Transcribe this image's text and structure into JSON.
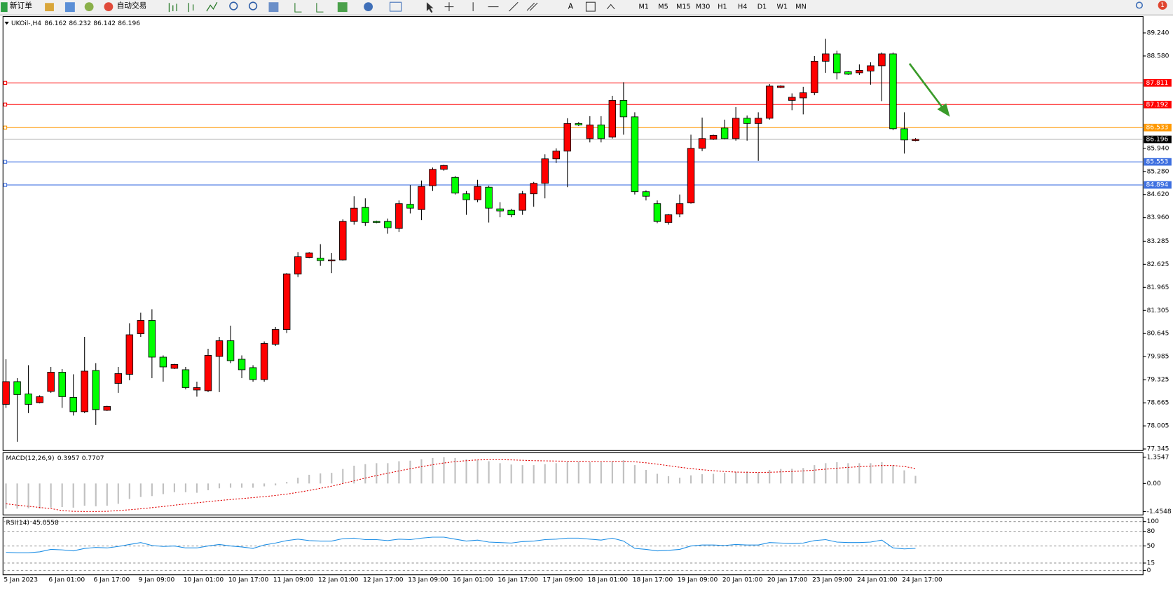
{
  "toolbar": {
    "new_order": "新订单",
    "auto_trade": "自动交易",
    "text_tool": "A",
    "notifications": "1",
    "timeframes": [
      "M1",
      "M5",
      "M15",
      "M30",
      "H1",
      "H4",
      "D1",
      "W1",
      "MN"
    ]
  },
  "chart_data": [
    {
      "type": "candlestick",
      "title": "UKOil-,H4",
      "up_color": "#ff0000",
      "down_color": "#00ff00",
      "categories": [
        "5 Jan 2023",
        null,
        null,
        null,
        "6 Jan 01:00",
        null,
        null,
        null,
        "6 Jan 17:00",
        null,
        null,
        null,
        "9 Jan 09:00",
        null,
        null,
        null,
        "10 Jan 01:00",
        null,
        null,
        null,
        "10 Jan 17:00",
        null,
        null,
        null,
        "11 Jan 09:00",
        null,
        null,
        null,
        "12 Jan 01:00",
        null,
        null,
        null,
        "12 Jan 17:00",
        null,
        null,
        null,
        "13 Jan 09:00",
        null,
        null,
        null,
        "16 Jan 01:00",
        null,
        null,
        null,
        "16 Jan 17:00",
        null,
        null,
        null,
        "17 Jan 09:00",
        null,
        null,
        null,
        "18 Jan 01:00",
        null,
        null,
        null,
        "18 Jan 17:00",
        null,
        null,
        null,
        "19 Jan 09:00",
        null,
        null,
        null,
        "20 Jan 01:00",
        null,
        null,
        null,
        "20 Jan 17:00",
        null,
        null,
        null,
        "23 Jan 09:00",
        null,
        null,
        null,
        "24 Jan 01:00",
        null,
        null,
        null,
        "24 Jan 17:00",
        null
      ],
      "open": [
        78.62,
        79.27,
        78.92,
        78.67,
        78.99,
        79.54,
        78.82,
        78.41,
        79.59,
        78.45,
        79.22,
        79.48,
        80.64,
        81.02,
        79.97,
        79.65,
        79.61,
        79.03,
        79.01,
        79.99,
        80.44,
        79.91,
        79.67,
        79.33,
        80.34,
        80.76,
        82.35,
        82.82,
        82.8,
        82.72,
        82.75,
        83.85,
        84.25,
        83.85,
        83.85,
        83.65,
        84.34,
        84.19,
        84.87,
        85.34,
        85.11,
        84.64,
        84.47,
        84.83,
        84.21,
        84.17,
        84.17,
        84.64,
        84.94,
        85.64,
        85.86,
        86.65,
        86.22,
        86.61,
        86.26,
        87.31,
        86.84,
        84.7,
        84.36,
        83.82,
        84.06,
        84.38,
        85.94,
        86.2,
        86.52,
        86.22,
        86.8,
        86.65,
        86.8,
        87.68,
        87.31,
        87.38,
        87.53,
        88.43,
        88.64,
        88.13,
        88.1,
        88.15,
        88.3,
        88.64,
        86.5,
        86.162
      ],
      "high": [
        79.91,
        79.37,
        79.74,
        78.88,
        79.69,
        79.63,
        79.48,
        80.55,
        79.8,
        78.58,
        79.69,
        80.94,
        81.24,
        81.34,
        80.02,
        79.78,
        79.69,
        79.27,
        80.21,
        80.55,
        80.87,
        80.02,
        79.74,
        80.42,
        80.83,
        82.37,
        82.97,
        82.97,
        83.2,
        82.95,
        83.91,
        84.57,
        84.51,
        83.87,
        83.93,
        84.45,
        84.89,
        85.02,
        85.39,
        85.47,
        85.15,
        84.72,
        85.04,
        84.87,
        84.4,
        84.21,
        84.72,
        84.98,
        85.77,
        85.94,
        86.8,
        86.69,
        86.86,
        86.86,
        87.44,
        87.83,
        86.97,
        84.74,
        84.45,
        84.06,
        84.62,
        86.33,
        86.82,
        86.33,
        86.76,
        87.12,
        86.88,
        86.97,
        87.78,
        87.74,
        87.51,
        87.7,
        88.58,
        89.07,
        88.73,
        88.15,
        88.34,
        88.4,
        88.68,
        88.68,
        86.97,
        86.232
      ],
      "low": [
        78.52,
        77.55,
        78.37,
        78.65,
        78.95,
        78.52,
        78.3,
        78.37,
        78.03,
        78.43,
        78.95,
        79.31,
        80.55,
        79.37,
        79.27,
        79.63,
        79.05,
        78.84,
        78.97,
        78.97,
        79.8,
        79.37,
        79.27,
        79.27,
        80.29,
        80.66,
        82.26,
        82.8,
        82.58,
        82.37,
        82.73,
        83.76,
        83.72,
        83.8,
        83.5,
        83.55,
        84.08,
        83.89,
        84.72,
        85.3,
        84.62,
        84.04,
        84.4,
        83.82,
        83.97,
        83.97,
        84.04,
        84.27,
        84.51,
        85.52,
        84.83,
        86.58,
        86.11,
        86.11,
        86.22,
        86.33,
        84.62,
        84.45,
        83.8,
        83.76,
        83.97,
        84.36,
        85.86,
        86.18,
        86.2,
        86.16,
        86.16,
        85.58,
        86.76,
        87.66,
        87.03,
        86.91,
        87.46,
        88.1,
        87.91,
        88.04,
        88.04,
        87.76,
        87.29,
        86.46,
        85.79,
        86.142
      ],
      "close": [
        79.27,
        78.9,
        78.62,
        78.84,
        79.54,
        78.84,
        78.41,
        79.57,
        78.47,
        78.56,
        79.5,
        80.61,
        81.02,
        79.97,
        79.69,
        79.76,
        79.1,
        79.1,
        80.02,
        80.44,
        79.87,
        79.61,
        79.33,
        80.36,
        80.76,
        82.35,
        82.84,
        82.95,
        82.73,
        82.75,
        83.85,
        84.23,
        83.82,
        83.82,
        83.67,
        84.36,
        84.23,
        84.85,
        85.34,
        85.45,
        84.66,
        84.47,
        84.85,
        84.23,
        84.15,
        84.04,
        84.64,
        84.94,
        85.64,
        85.86,
        86.65,
        86.61,
        86.61,
        86.22,
        87.31,
        86.84,
        84.7,
        84.57,
        83.85,
        84.04,
        84.36,
        85.94,
        86.22,
        86.31,
        86.22,
        86.8,
        86.65,
        86.8,
        87.72,
        87.72,
        87.4,
        87.53,
        88.43,
        88.64,
        88.1,
        88.06,
        88.17,
        88.3,
        88.64,
        86.5,
        86.18,
        86.196
      ],
      "levels": [
        {
          "value": 87.811,
          "color": "#ff0000"
        },
        {
          "value": 87.192,
          "color": "#ff0000"
        },
        {
          "value": 86.533,
          "color": "#ff9900"
        },
        {
          "value": 85.553,
          "color": "#3d6fe0"
        },
        {
          "value": 84.894,
          "color": "#3d6fe0"
        }
      ],
      "ylim": [
        77.3,
        89.71
      ],
      "yticks": [
        {
          "value": 89.24,
          "label": "89.240"
        },
        {
          "value": 88.58,
          "label": "88.580"
        },
        {
          "value": 85.94,
          "label": "85.940"
        },
        {
          "value": 85.28,
          "label": "85.280"
        },
        {
          "value": 84.62,
          "label": "84.620"
        },
        {
          "value": 83.96,
          "label": "83.960"
        },
        83.285,
        82.625,
        81.965,
        81.305,
        80.645,
        79.985,
        79.325,
        78.665,
        78.005,
        77.345
      ]
    },
    {
      "type": "macd",
      "title": "MACD(12,26,9)",
      "series": [
        {
          "color": "#c0c0c0",
          "values": [
            -1.3,
            -1.3,
            -1.28,
            -1.3,
            -1.25,
            -1.22,
            -1.25,
            -1.15,
            -1.18,
            -1.15,
            -1.05,
            -0.8,
            -0.7,
            -0.65,
            -0.55,
            -0.45,
            -0.45,
            -0.48,
            -0.35,
            -0.25,
            -0.22,
            -0.22,
            -0.22,
            -0.15,
            -0.1,
            0.08,
            0.3,
            0.45,
            0.52,
            0.55,
            0.75,
            0.92,
            1.0,
            1.05,
            1.05,
            1.15,
            1.18,
            1.25,
            1.32,
            1.36,
            1.32,
            1.25,
            1.22,
            1.15,
            1.05,
            0.98,
            0.95,
            0.95,
            1.0,
            1.05,
            1.12,
            1.12,
            1.1,
            1.1,
            1.15,
            1.2,
            0.95,
            0.7,
            0.5,
            0.38,
            0.3,
            0.42,
            0.48,
            0.5,
            0.55,
            0.6,
            0.62,
            0.55,
            0.7,
            0.75,
            0.76,
            0.8,
            0.95,
            1.05,
            1.1,
            1.05,
            1.05,
            1.05,
            1.1,
            0.95,
            0.68,
            0.3957
          ]
        },
        {
          "color": "#e00000",
          "values": [
            -1.05,
            -1.12,
            -1.18,
            -1.24,
            -1.3,
            -1.4,
            -1.44,
            -1.45,
            -1.45,
            -1.44,
            -1.4,
            -1.36,
            -1.31,
            -1.25,
            -1.19,
            -1.12,
            -1.06,
            -1.0,
            -0.94,
            -0.88,
            -0.83,
            -0.78,
            -0.73,
            -0.68,
            -0.62,
            -0.55,
            -0.46,
            -0.36,
            -0.25,
            -0.14,
            0.0,
            0.14,
            0.28,
            0.41,
            0.53,
            0.65,
            0.76,
            0.87,
            0.97,
            1.06,
            1.13,
            1.18,
            1.22,
            1.23,
            1.23,
            1.22,
            1.2,
            1.18,
            1.17,
            1.16,
            1.15,
            1.15,
            1.14,
            1.14,
            1.14,
            1.15,
            1.12,
            1.07,
            1.0,
            0.92,
            0.84,
            0.77,
            0.71,
            0.66,
            0.62,
            0.59,
            0.58,
            0.57,
            0.58,
            0.6,
            0.62,
            0.65,
            0.69,
            0.74,
            0.79,
            0.83,
            0.87,
            0.9,
            0.93,
            0.93,
            0.88,
            0.7707
          ]
        }
      ],
      "ylim": [
        -1.625,
        1.587
      ],
      "yticks": [
        1.3547,
        {
          "value": 0,
          "label": "0.00"
        },
        -1.4548
      ]
    },
    {
      "type": "line",
      "title": "RSI(14)",
      "color": "#1e8fe6",
      "values": [
        37,
        36,
        36,
        38,
        43,
        42,
        40,
        45,
        47,
        46,
        49,
        53,
        57,
        51,
        49,
        50,
        46,
        46,
        50,
        53,
        50,
        48,
        45,
        52,
        56,
        61,
        64,
        61,
        60,
        60,
        65,
        66,
        63,
        63,
        61,
        64,
        63,
        66,
        68,
        68,
        64,
        60,
        62,
        58,
        57,
        56,
        59,
        60,
        63,
        64,
        66,
        66,
        64,
        62,
        66,
        60,
        45,
        43,
        40,
        41,
        43,
        50,
        52,
        52,
        51,
        53,
        52,
        52,
        57,
        56,
        55,
        56,
        61,
        63,
        58,
        57,
        57,
        58,
        62,
        46,
        44,
        45.0558
      ],
      "ylim": [
        -9,
        109
      ],
      "yticks": [
        100,
        80,
        50,
        15,
        0
      ]
    }
  ]
}
